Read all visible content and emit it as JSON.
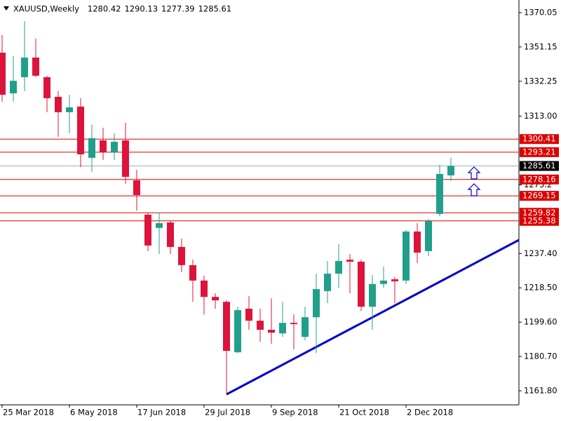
{
  "chart_data": {
    "type": "candlestick",
    "title": "XAUUSD,Weekly",
    "title_values": [
      1280.42,
      1290.13,
      1277.39,
      1285.61
    ],
    "categories": [
      "25 Mar 2018",
      null,
      null,
      null,
      null,
      null,
      "6 May 2018",
      null,
      null,
      null,
      null,
      null,
      "17 Jun 2018",
      null,
      null,
      null,
      null,
      null,
      "29 Jul 2018",
      null,
      null,
      null,
      null,
      null,
      "9 Sep 2018",
      null,
      null,
      null,
      null,
      null,
      "21 Oct 2018",
      null,
      null,
      null,
      null,
      null,
      "2 Dec 2018",
      null,
      null,
      null,
      null
    ],
    "open": [
      1348.0,
      1325.6,
      1334.5,
      1345.3,
      1334.5,
      1323.7,
      1315.2,
      1318.3,
      1290.1,
      1299.7,
      1293.2,
      1299.7,
      1277.7,
      1258.8,
      1251.5,
      1254.5,
      1241.0,
      1231.0,
      1222.5,
      1213.5,
      1210.8,
      1183.0,
      1207.0,
      1200.4,
      1195.4,
      1193.4,
      1199.2,
      1191.5,
      1202.3,
      1216.7,
      1226.3,
      1234.0,
      1232.9,
      1208.1,
      1220.6,
      1223.2,
      1222.5,
      1249.5,
      1238.7,
      1259.2,
      1280.42
    ],
    "high": [
      1357.7,
      1346.1,
      1365.4,
      1355.8,
      1335.3,
      1326.8,
      1324.8,
      1322.9,
      1308.2,
      1306.7,
      1303.6,
      1309.4,
      1283.5,
      1259.9,
      1259.9,
      1255.3,
      1245.6,
      1234.0,
      1225.2,
      1215.5,
      1211.6,
      1208.1,
      1213.9,
      1207.0,
      1212.7,
      1210.8,
      1203.9,
      1208.1,
      1226.3,
      1233.3,
      1242.5,
      1237.1,
      1234.0,
      1225.6,
      1230.2,
      1224.4,
      1250.3,
      1254.1,
      1256.5,
      1286.2,
      1290.13
    ],
    "low": [
      1321.0,
      1321.0,
      1326.8,
      1334.5,
      1315.2,
      1301.7,
      1303.6,
      1285.0,
      1282.3,
      1288.9,
      1288.9,
      1275.8,
      1261.1,
      1238.7,
      1237.1,
      1237.1,
      1227.1,
      1210.8,
      1203.9,
      1207.0,
      1159.8,
      1182.6,
      1195.4,
      1188.8,
      1187.7,
      1191.5,
      1184.6,
      1189.6,
      1182.6,
      1210.1,
      1218.6,
      1215.5,
      1205.8,
      1195.4,
      1218.6,
      1210.1,
      1220.6,
      1232.1,
      1235.9,
      1258.0,
      1277.39
    ],
    "close": [
      1324.8,
      1332.5,
      1345.3,
      1335.3,
      1322.9,
      1315.2,
      1317.9,
      1292.0,
      1300.9,
      1293.2,
      1298.9,
      1279.6,
      1269.6,
      1241.8,
      1254.1,
      1241.0,
      1231.0,
      1222.5,
      1213.5,
      1211.6,
      1183.8,
      1206.2,
      1200.4,
      1195.4,
      1193.8,
      1199.2,
      1198.5,
      1202.3,
      1217.8,
      1226.3,
      1233.3,
      1232.9,
      1208.1,
      1220.6,
      1222.5,
      1222.1,
      1249.5,
      1237.9,
      1255.3,
      1281.2,
      1285.61
    ],
    "up_color": "#20a08a",
    "down_color": "#dc143c",
    "ylim": [
      1154.05,
      1377.0
    ],
    "yticks": [
      1370.05,
      1351.15,
      1332.25,
      {
        "value": 1313.0,
        "label": "1313.00"
      },
      1275.2,
      {
        "value": 1237.4,
        "label": "1237.40"
      },
      {
        "value": 1218.5,
        "label": "1218.50"
      },
      {
        "value": 1199.6,
        "label": "1199.60"
      },
      {
        "value": 1180.7,
        "label": "1180.70"
      },
      {
        "value": 1161.8,
        "label": "1161.80"
      }
    ],
    "hlines": [
      1300.41,
      1293.21,
      1278.16,
      1269.15,
      1259.82,
      1255.38
    ],
    "hline_color": "#dc0000",
    "last_price": 1285.61,
    "last_price_color": "#9ab0b0"
  }
}
